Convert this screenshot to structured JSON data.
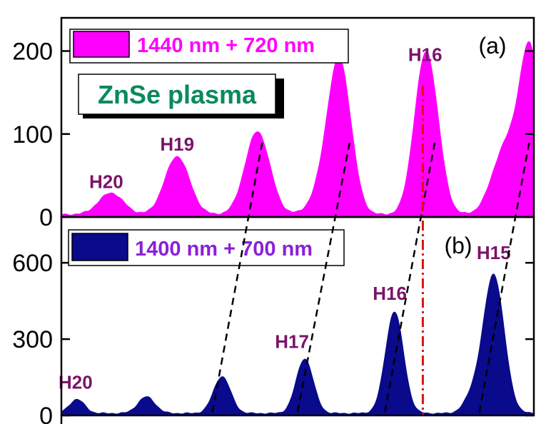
{
  "chart_data": [
    {
      "type": "area",
      "panel_label": "(a)",
      "legend": {
        "label": "1440 nm + 720 nm",
        "color": "#ff00ff",
        "text_color": "#ff00ff"
      },
      "sample_label": "ZnSe plasma",
      "sample_color": "#0a8a5a",
      "ylim": [
        0,
        240
      ],
      "yticks": [
        {
          "value": 0,
          "label": "0"
        },
        {
          "value": 100,
          "label": "100"
        },
        {
          "value": 200,
          "label": "200"
        }
      ],
      "x_range": [
        0,
        100
      ],
      "background": 3,
      "peaks": [
        {
          "center": 10.5,
          "height": 26,
          "width": 2.6
        },
        {
          "center": 24.5,
          "height": 70,
          "width": 2.6
        },
        {
          "center": 41.5,
          "height": 100,
          "width": 2.6
        },
        {
          "center": 59.0,
          "height": 152,
          "width": 2.4
        },
        {
          "center": 77.5,
          "height": 178,
          "width": 2.4
        },
        {
          "center": 99.2,
          "height": 192,
          "width": 2.2
        }
      ],
      "shoulders": [
        {
          "center": 57.0,
          "height": 45,
          "width": 3.0
        },
        {
          "center": 75.5,
          "height": 28,
          "width": 2.0
        },
        {
          "center": 94.0,
          "height": 80,
          "width": 2.8
        }
      ],
      "harmonic_labels": [
        {
          "text": "H20",
          "x": 9.5,
          "y": 35
        },
        {
          "text": "H19",
          "x": 24.5,
          "y": 80
        },
        {
          "text": "H16",
          "x": 77.0,
          "y": 188
        }
      ]
    },
    {
      "type": "area",
      "panel_label": "(b)",
      "legend": {
        "label": "1400 nm + 700 nm",
        "color": "#0a0a8c",
        "text_color": "#8a20d8"
      },
      "ylim": [
        0,
        780
      ],
      "yticks": [
        {
          "value": 0,
          "label": "0"
        },
        {
          "value": 300,
          "label": "300"
        },
        {
          "value": 600,
          "label": "600"
        }
      ],
      "x_range": [
        0,
        100
      ],
      "background": 8,
      "peaks": [
        {
          "center": 3.3,
          "height": 55,
          "width": 1.6
        },
        {
          "center": 18.0,
          "height": 65,
          "width": 1.8
        },
        {
          "center": 34.0,
          "height": 145,
          "width": 1.8
        },
        {
          "center": 51.5,
          "height": 215,
          "width": 1.8
        },
        {
          "center": 70.5,
          "height": 400,
          "width": 1.9
        },
        {
          "center": 91.5,
          "height": 545,
          "width": 2.2
        }
      ],
      "shoulders": [
        {
          "center": 87.0,
          "height": 60,
          "width": 1.8
        }
      ],
      "harmonic_labels": [
        {
          "text": "H20",
          "x": 3.0,
          "y": 105
        },
        {
          "text": "H17",
          "x": 48.8,
          "y": 265
        },
        {
          "text": "H16",
          "x": 69.5,
          "y": 455
        },
        {
          "text": "H15",
          "x": 91.5,
          "y": 615
        }
      ]
    }
  ],
  "guide_lines": {
    "dashed_color": "#000000",
    "dashed": [
      {
        "x_top": 42.5,
        "x_bottom": 31.5
      },
      {
        "x_top": 61.0,
        "x_bottom": 49.5
      },
      {
        "x_top": 79.0,
        "x_bottom": 68.0
      },
      {
        "x_top": 99.0,
        "x_bottom": 88.0
      }
    ],
    "dash_dot_color": "#e01010",
    "dash_dot_x": 76.5
  }
}
